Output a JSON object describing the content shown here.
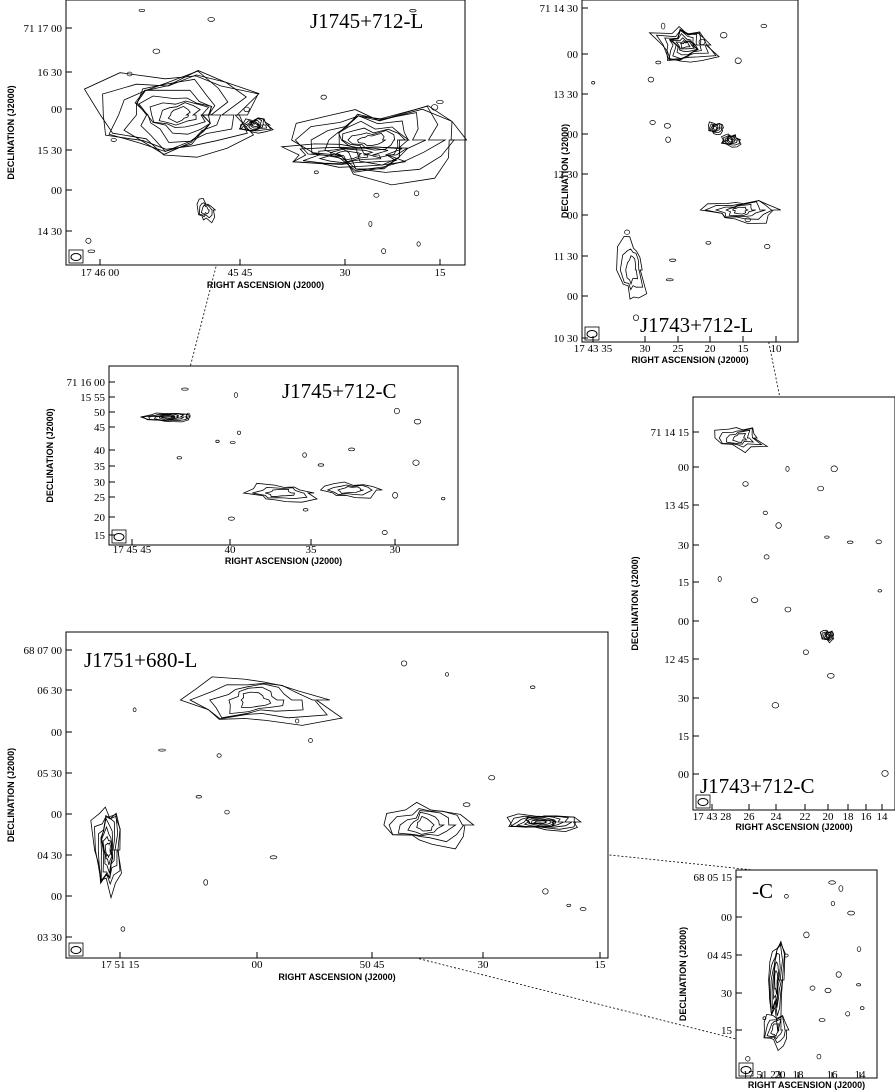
{
  "panels": [
    {
      "title": "J1745+712-L",
      "y_labels": [
        "71 17 00",
        "16 30",
        "00",
        "15 30",
        "00",
        "14 30"
      ],
      "x_labels": [
        "17 46 00",
        "45 45",
        "30",
        "15"
      ],
      "x_axis": "RIGHT ASCENSION (J2000)",
      "y_axis": "DECLINATION (J2000)"
    },
    {
      "title": "J1743+712-L",
      "y_labels": [
        "71 14 30",
        "00",
        "13 30",
        "00",
        "12 30",
        "00",
        "11 30",
        "00",
        "10 30"
      ],
      "x_labels": [
        "17 43 35",
        "30",
        "25",
        "20",
        "15",
        "10"
      ],
      "x_axis": "RIGHT ASCENSION (J2000)",
      "y_axis": "DECLINATION (J2000)"
    },
    {
      "title": "J1745+712-C",
      "y_labels": [
        "71 16 00",
        "15 55",
        "50",
        "45",
        "40",
        "35",
        "30",
        "25",
        "20",
        "15"
      ],
      "x_labels": [
        "17 45 45",
        "40",
        "35",
        "30"
      ],
      "x_axis": "RIGHT ASCENSION (J2000)",
      "y_axis": "DECLINATION (J2000)"
    },
    {
      "title": "J1743+712-C",
      "y_labels": [
        "71 14 15",
        "00",
        "13 45",
        "30",
        "15",
        "00",
        "12 45",
        "30",
        "15",
        "00"
      ],
      "x_labels": [
        "17 43 28",
        "26",
        "24",
        "22",
        "20",
        "18",
        "16",
        "14"
      ],
      "x_axis": "RIGHT ASCENSION (J2000)",
      "y_axis": "DECLINATION (J2000)"
    },
    {
      "title": "J1751+680-L",
      "y_labels": [
        "68 07 00",
        "06 30",
        "00",
        "05 30",
        "00",
        "04 30",
        "00",
        "03 30"
      ],
      "x_labels": [
        "17 51 15",
        "00",
        "50 45",
        "30",
        "15"
      ],
      "x_axis": "RIGHT ASCENSION (J2000)",
      "y_axis": "DECLINATION (J2000)"
    },
    {
      "title": "-C",
      "y_labels": [
        "68 05 15",
        "00",
        "04 45",
        "30",
        "15"
      ],
      "x_labels": [
        "17 51 22",
        "20",
        "18",
        "16",
        "14"
      ],
      "x_axis": "RIGHT ASCENSION (J2000)",
      "y_axis": "DECLINATION (J2000)"
    }
  ]
}
